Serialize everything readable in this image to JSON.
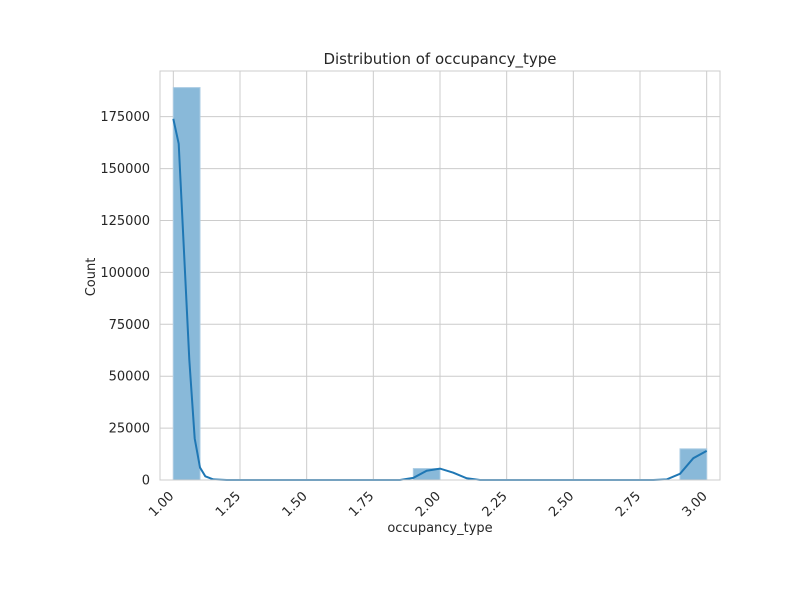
{
  "chart_data": {
    "type": "histogram",
    "title": "Distribution of occupancy_type",
    "xlabel": "occupancy_type",
    "ylabel": "Count",
    "xlim": [
      0.95,
      3.05
    ],
    "ylim": [
      0,
      197000
    ],
    "x_ticks": [
      "1.00",
      "1.25",
      "1.50",
      "1.75",
      "2.00",
      "2.25",
      "2.50",
      "2.75",
      "3.00"
    ],
    "x_tick_values": [
      1.0,
      1.25,
      1.5,
      1.75,
      2.0,
      2.25,
      2.5,
      2.75,
      3.0
    ],
    "y_ticks": [
      "0",
      "25000",
      "50000",
      "75000",
      "100000",
      "125000",
      "150000",
      "175000"
    ],
    "y_tick_values": [
      0,
      25000,
      50000,
      75000,
      100000,
      125000,
      150000,
      175000
    ],
    "grid": true,
    "bins": [
      {
        "x0": 1.0,
        "x1": 1.1,
        "count": 189000
      },
      {
        "x0": 1.9,
        "x1": 2.0,
        "count": 5500
      },
      {
        "x0": 2.9,
        "x1": 3.0,
        "count": 15000
      }
    ],
    "kde": {
      "x": [
        1.0,
        1.02,
        1.04,
        1.06,
        1.08,
        1.1,
        1.12,
        1.15,
        1.2,
        1.5,
        1.85,
        1.9,
        1.95,
        2.0,
        2.05,
        2.1,
        2.15,
        2.5,
        2.8,
        2.85,
        2.9,
        2.95,
        3.0
      ],
      "y": [
        174000,
        162000,
        110000,
        58000,
        20000,
        6000,
        1800,
        300,
        0,
        0,
        0,
        1000,
        4500,
        5500,
        3500,
        800,
        0,
        0,
        0,
        300,
        3000,
        10500,
        14000
      ]
    },
    "colors": {
      "bar_fill": "#89b9d9",
      "bar_edge": "#a9cbe3",
      "kde_line": "#1f77b4",
      "grid": "#cccccc",
      "axes_edge": "#cccccc",
      "text": "#262626"
    }
  }
}
